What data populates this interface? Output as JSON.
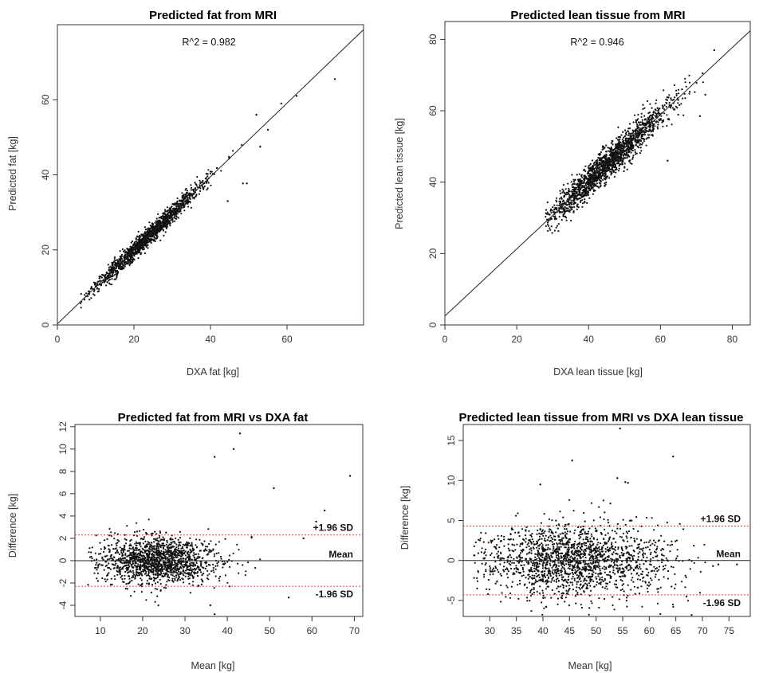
{
  "chart_data": [
    {
      "type": "scatter",
      "title": "Predicted fat from MRI",
      "xlabel": "DXA fat [kg]",
      "ylabel": "Predicted fat [kg]",
      "xlim": [
        0,
        80
      ],
      "ylim": [
        0,
        80
      ],
      "x_ticks": [
        0,
        20,
        40,
        60
      ],
      "y_ticks": [
        0,
        20,
        40,
        60
      ],
      "annotation": "R^2 = 0.982",
      "reference_line": {
        "slope": 0.98,
        "intercept": 0.3
      },
      "point_cloud": {
        "n": 1500,
        "x_mean": 24,
        "x_sd": 7,
        "x_min": 6,
        "x_max": 60,
        "slope": 0.98,
        "intercept": 0.3,
        "noise_sd": 1.2,
        "seed": 11
      },
      "extra_points": [
        [
          72.5,
          65.5
        ],
        [
          62.5,
          61
        ],
        [
          58.5,
          59
        ],
        [
          52,
          56
        ],
        [
          53,
          47.5
        ],
        [
          44.5,
          33
        ],
        [
          48.5,
          37.7
        ],
        [
          49.5,
          37.7
        ],
        [
          55,
          52
        ]
      ]
    },
    {
      "type": "scatter",
      "title": "Predicted lean tissue from MRI",
      "xlabel": "DXA lean tissue [kg]",
      "ylabel": "Predicted lean tissue [kg]",
      "xlim": [
        0,
        85
      ],
      "ylim": [
        0,
        85
      ],
      "x_ticks": [
        0,
        20,
        40,
        60,
        80
      ],
      "y_ticks": [
        0,
        20,
        40,
        60,
        80
      ],
      "annotation": "R^2 = 0.946",
      "reference_line": {
        "slope": 0.94,
        "intercept": 2.5
      },
      "point_cloud": {
        "n": 1800,
        "x_mean": 45,
        "x_sd": 9,
        "x_min": 28,
        "x_max": 76,
        "slope": 0.94,
        "intercept": 2.5,
        "noise_sd": 2.2,
        "seed": 23
      },
      "extra_points": [
        [
          71,
          58.5
        ],
        [
          72.5,
          64.5
        ],
        [
          75,
          77
        ],
        [
          62,
          46
        ],
        [
          66,
          66
        ]
      ]
    },
    {
      "type": "scatter",
      "title": "Predicted fat from MRI vs DXA fat",
      "xlabel": "Mean [kg]",
      "ylabel": "Difference [kg]",
      "xlim": [
        4,
        72
      ],
      "ylim": [
        -5,
        12.2
      ],
      "x_ticks": [
        10,
        20,
        30,
        40,
        50,
        60,
        70
      ],
      "y_ticks": [
        -4,
        -2,
        0,
        2,
        4,
        6,
        8,
        10,
        12
      ],
      "hlines": [
        {
          "label": "+1.96 SD",
          "value": 2.3,
          "style": "dotted-red"
        },
        {
          "label": "Mean",
          "value": 0.0,
          "style": "solid"
        },
        {
          "label": "-1.96 SD",
          "value": -2.3,
          "style": "dotted-red"
        }
      ],
      "point_cloud": {
        "n": 1500,
        "x_mean": 24,
        "x_sd": 7,
        "x_min": 7,
        "x_max": 56,
        "y_mean": 0,
        "y_sd": 1.1,
        "seed": 37
      },
      "extra_points": [
        [
          43,
          11.4
        ],
        [
          41.5,
          10
        ],
        [
          37,
          9.3
        ],
        [
          69,
          7.6
        ],
        [
          51,
          6.5
        ],
        [
          63,
          4.5
        ],
        [
          61,
          3.5
        ],
        [
          58,
          2.0
        ],
        [
          37,
          -4.8
        ],
        [
          36,
          -4.0
        ],
        [
          54.5,
          -3.3
        ]
      ]
    },
    {
      "type": "scatter",
      "title": "Predicted lean tissue from MRI vs DXA lean tissue",
      "xlabel": "Mean [kg]",
      "ylabel": "Difference [kg]",
      "xlim": [
        25,
        79
      ],
      "ylim": [
        -7,
        17
      ],
      "x_ticks": [
        30,
        35,
        40,
        45,
        50,
        55,
        60,
        65,
        70,
        75
      ],
      "y_ticks": [
        -5,
        0,
        5,
        10,
        15
      ],
      "hlines": [
        {
          "label": "+1.96 SD",
          "value": 4.3,
          "style": "dotted-red"
        },
        {
          "label": "Mean",
          "value": 0.0,
          "style": "solid"
        },
        {
          "label": "-1.96 SD",
          "value": -4.3,
          "style": "dotted-red"
        }
      ],
      "point_cloud": {
        "n": 1800,
        "x_mean": 46,
        "x_sd": 9,
        "x_min": 27,
        "x_max": 77,
        "y_mean": 0,
        "y_sd": 2.2,
        "seed": 53
      },
      "extra_points": [
        [
          54.5,
          16.5
        ],
        [
          45.5,
          12.5
        ],
        [
          64.5,
          13
        ],
        [
          54,
          10.3
        ],
        [
          55.5,
          9.8
        ],
        [
          56,
          9.7
        ],
        [
          39.5,
          9.5
        ],
        [
          76.5,
          -0.5
        ],
        [
          73,
          -0.5
        ],
        [
          72,
          -0.7
        ],
        [
          67,
          -4.5
        ]
      ]
    }
  ]
}
